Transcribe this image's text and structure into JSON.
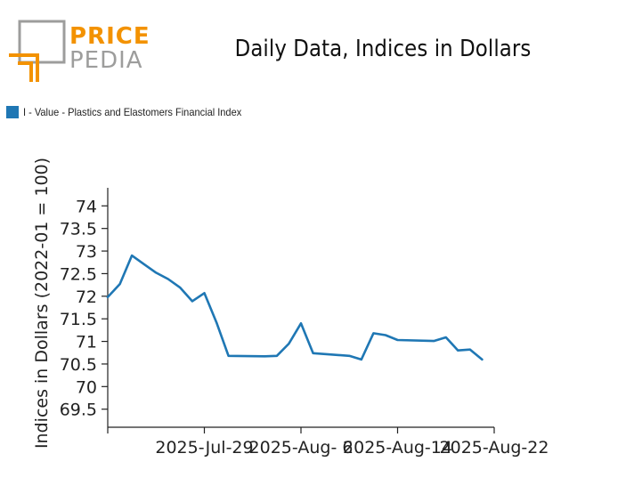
{
  "header": {
    "logo_top": "PRICE",
    "logo_bottom": "PEDIA",
    "title": "Daily Data, Indices in Dollars"
  },
  "colors": {
    "logo_orange": "#f39200",
    "logo_gray": "#9d9d9c",
    "series": "#1f77b4"
  },
  "chart_data": {
    "type": "line",
    "title": "Daily Data, Indices in Dollars",
    "ylabel": "Indices in Dollars (2022-01 = 100)",
    "xlabel": "",
    "ylim": [
      69.1,
      74.4
    ],
    "yticks": [
      "69.5",
      "70",
      "70.5",
      "71",
      "71.5",
      "72",
      "72.5",
      "73",
      "73.5",
      "74"
    ],
    "xtick_labels": [
      {
        "date": "2025-07-21",
        "label": ""
      },
      {
        "date": "2025-07-29",
        "label": "2025-Jul-29"
      },
      {
        "date": "2025-08-06",
        "label": "2025-Aug- 6"
      },
      {
        "date": "2025-08-14",
        "label": "2025-Aug-14"
      },
      {
        "date": "2025-08-22",
        "label": "2025-Aug-22"
      }
    ],
    "grid": false,
    "legend_position": "top-left",
    "series": [
      {
        "name": "I - Value - Plastics and Elastomers Financial Index",
        "points": [
          {
            "x": "2025-07-21",
            "y": 71.98
          },
          {
            "x": "2025-07-22",
            "y": 72.27
          },
          {
            "x": "2025-07-23",
            "y": 72.9
          },
          {
            "x": "2025-07-24",
            "y": 72.71
          },
          {
            "x": "2025-07-25",
            "y": 72.52
          },
          {
            "x": "2025-07-26",
            "y": 72.38
          },
          {
            "x": "2025-07-27",
            "y": 72.19
          },
          {
            "x": "2025-07-28",
            "y": 71.89
          },
          {
            "x": "2025-07-29",
            "y": 72.07
          },
          {
            "x": "2025-07-30",
            "y": 71.42
          },
          {
            "x": "2025-07-31",
            "y": 70.68
          },
          {
            "x": "2025-08-03",
            "y": 70.67
          },
          {
            "x": "2025-08-04",
            "y": 70.68
          },
          {
            "x": "2025-08-05",
            "y": 70.95
          },
          {
            "x": "2025-08-06",
            "y": 71.4
          },
          {
            "x": "2025-08-07",
            "y": 70.74
          },
          {
            "x": "2025-08-10",
            "y": 70.68
          },
          {
            "x": "2025-08-11",
            "y": 70.6
          },
          {
            "x": "2025-08-12",
            "y": 71.18
          },
          {
            "x": "2025-08-13",
            "y": 71.14
          },
          {
            "x": "2025-08-14",
            "y": 71.03
          },
          {
            "x": "2025-08-17",
            "y": 71.01
          },
          {
            "x": "2025-08-18",
            "y": 71.09
          },
          {
            "x": "2025-08-19",
            "y": 70.8
          },
          {
            "x": "2025-08-20",
            "y": 70.82
          },
          {
            "x": "2025-08-21",
            "y": 70.6
          }
        ]
      }
    ]
  }
}
